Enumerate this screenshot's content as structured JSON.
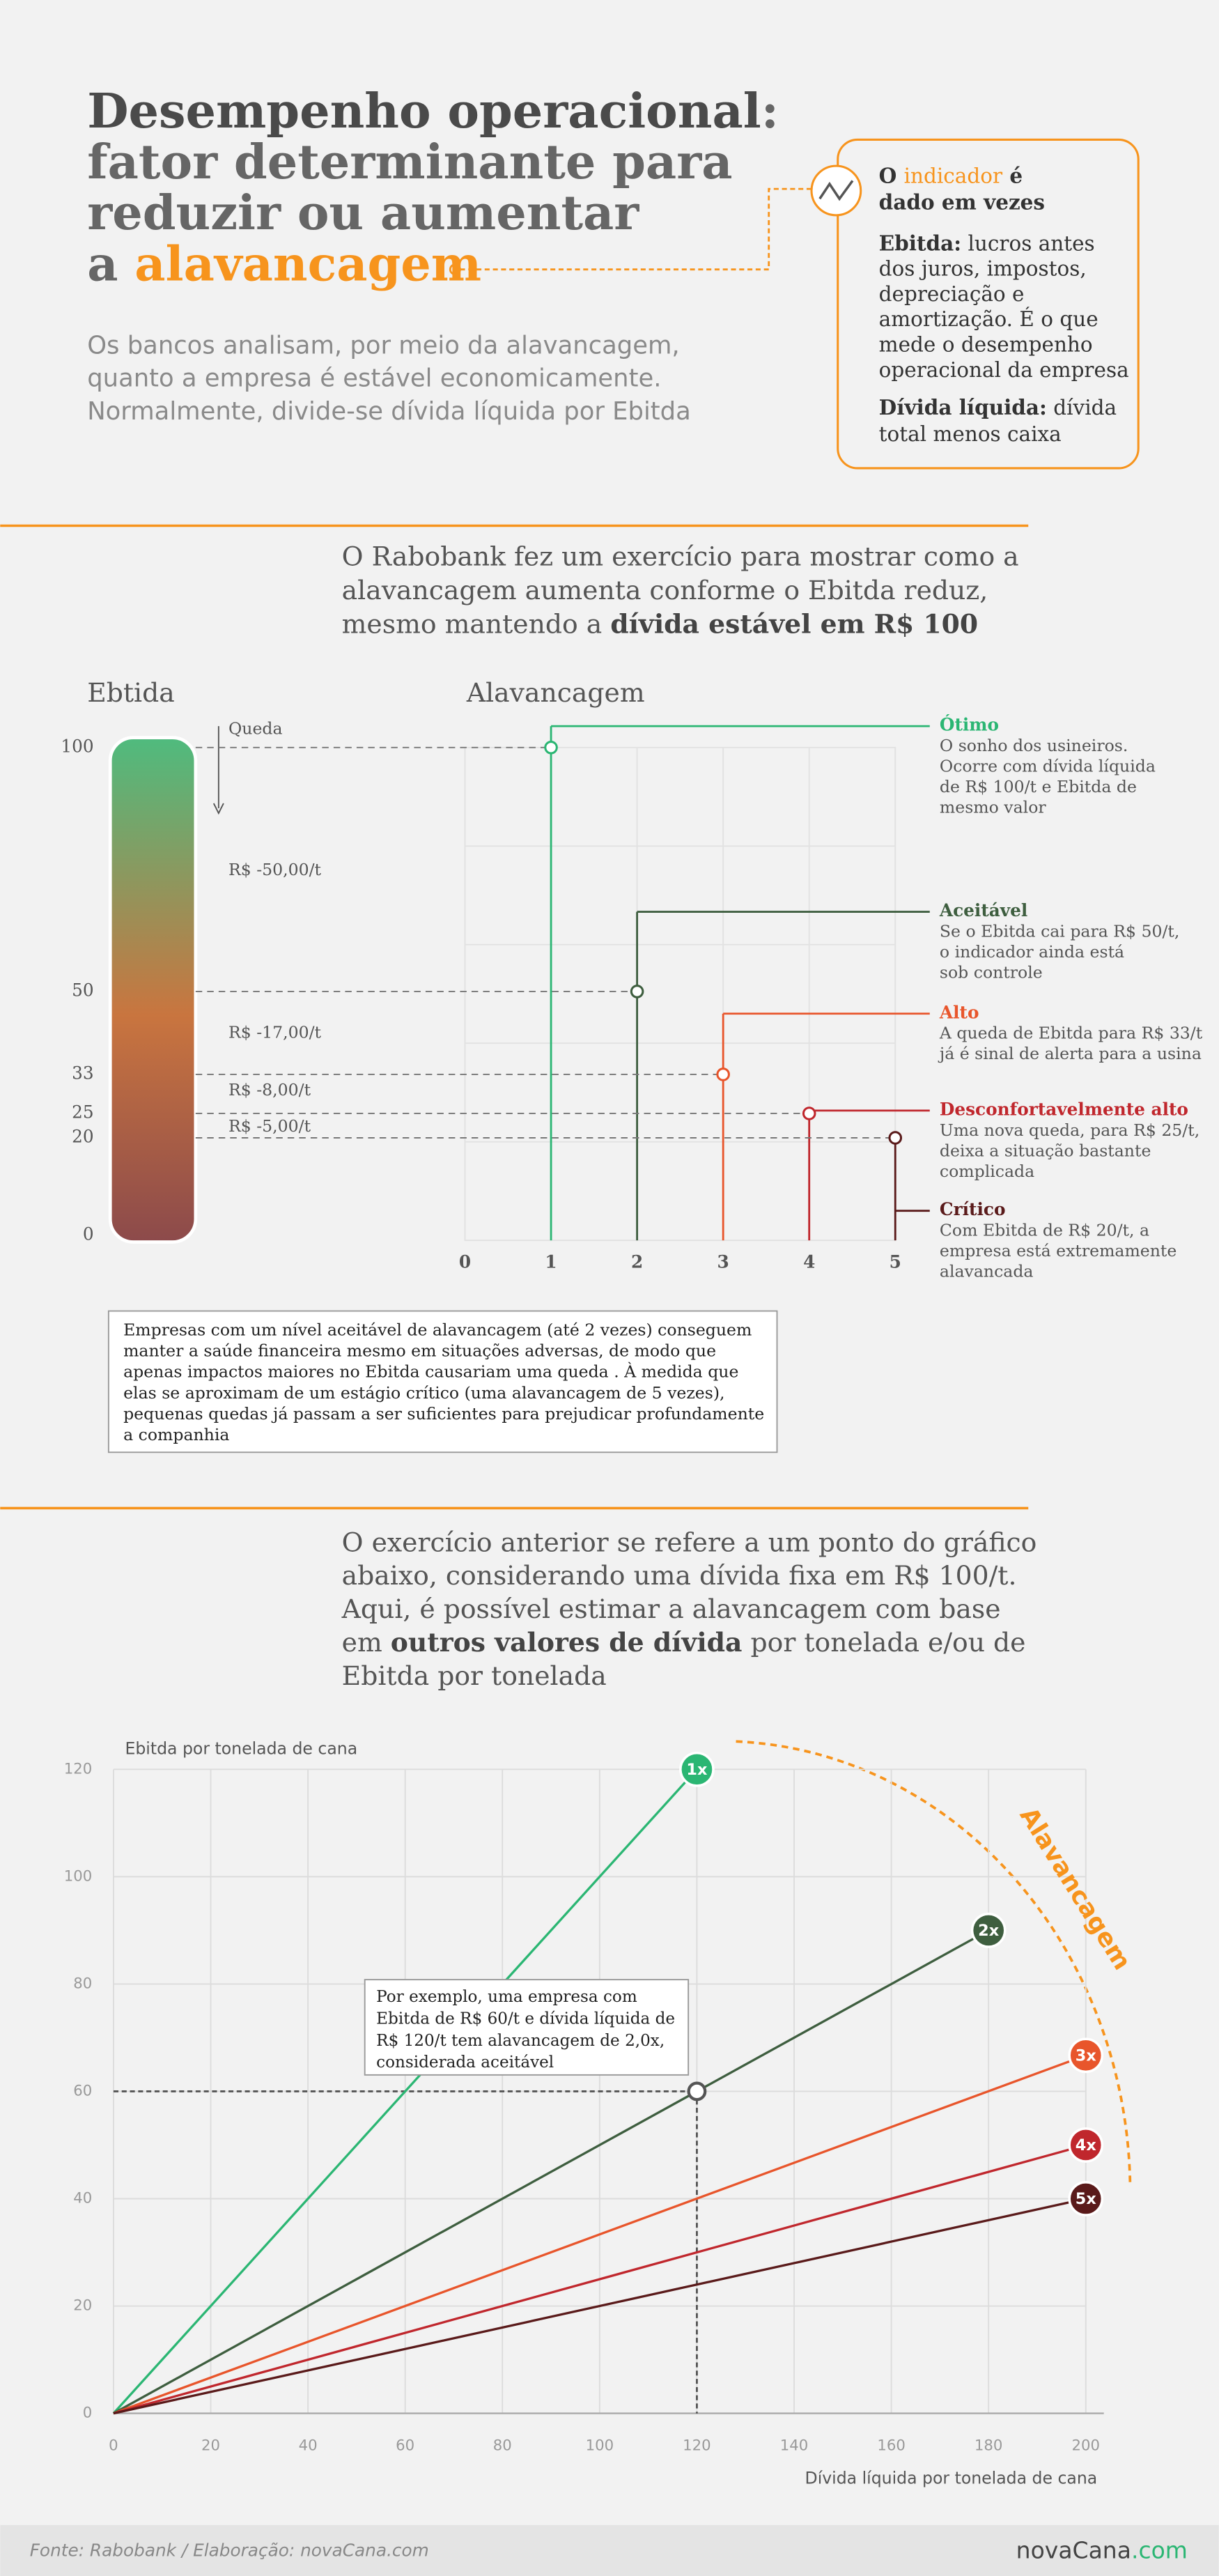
{
  "header": {
    "title": [
      [
        {
          "text": "Desempenho operacional",
          "color": "#4a4a4a"
        },
        {
          "text": ":"
        }
      ],
      [
        {
          "text": "fator determinante para"
        }
      ],
      [
        {
          "text": "reduzir ou aumentar"
        }
      ],
      [
        {
          "text": "a "
        },
        {
          "text": "alavancagem",
          "color": "#f7941d"
        }
      ]
    ],
    "subtitle": [
      "Os bancos analisam, por meio da alavancagem,",
      "quanto a empresa é estável economicamente.",
      "Normalmente, divide-se dívida líquida por Ebitda"
    ]
  },
  "info_box": {
    "indicator": [
      [
        {
          "text": "O ",
          "bold": true
        },
        {
          "text": "indicador",
          "color": "#f7941d"
        },
        {
          "text": " é",
          "bold": true
        }
      ],
      [
        {
          "text": "dado em vezes",
          "bold": true
        }
      ]
    ],
    "ebitda": [
      [
        {
          "text": "Ebitda:",
          "bold": true
        },
        {
          "text": " lucros antes"
        }
      ],
      [
        {
          "text": "dos juros, impostos,"
        }
      ],
      [
        {
          "text": "depreciação e"
        }
      ],
      [
        {
          "text": "amortização. É o que"
        }
      ],
      [
        {
          "text": "mede o desempenho"
        }
      ],
      [
        {
          "text": "operacional da empresa"
        }
      ]
    ],
    "debt": [
      [
        {
          "text": "Dívida líquida:",
          "bold": true
        },
        {
          "text": " dívida"
        }
      ],
      [
        {
          "text": "total menos caixa"
        }
      ]
    ]
  },
  "section1": {
    "intro": [
      [
        {
          "text": "O Rabobank fez um exercício para mostrar como a"
        }
      ],
      [
        {
          "text": "alavancagem aumenta conforme o Ebitda reduz,"
        }
      ],
      [
        {
          "text": "mesmo mantendo a "
        },
        {
          "text": "dívida estável em R$ 100",
          "bold": true
        }
      ]
    ]
  },
  "chart_data": [
    {
      "type": "step",
      "left_title": "Ebtida",
      "right_title": "Alavancagem",
      "drop_label": "Queda",
      "ylim": [
        0,
        100
      ],
      "yticks": [
        100,
        50,
        33,
        25,
        20,
        0
      ],
      "xlim": [
        0,
        5
      ],
      "xticks": [
        0,
        1,
        2,
        3,
        4,
        5
      ],
      "drops": [
        "R$ -50,00/t",
        "R$ -17,00/t",
        "R$ -8,00/t",
        "R$ -5,00/t"
      ],
      "series": [
        {
          "name": "Ótimo",
          "color": "#2bb673",
          "x": 1,
          "y": 100,
          "description": [
            "O sonho dos usineiros.",
            "Ocorre com dívida líquida",
            "de R$ 100/t e Ebitda de",
            "mesmo valor"
          ]
        },
        {
          "name": "Aceitável",
          "color": "#3e5e3f",
          "x": 2,
          "y": 50,
          "description": [
            "Se o Ebitda cai para R$ 50/t,",
            "o indicador ainda está",
            "sob controle"
          ]
        },
        {
          "name": "Alto",
          "color": "#e8552b",
          "x": 3,
          "y": 33,
          "description": [
            "A queda de Ebitda para R$ 33/t",
            "já é sinal de alerta para a usina"
          ]
        },
        {
          "name": "Desconfortavelmente alto",
          "color": "#c0272d",
          "x": 4,
          "y": 25,
          "description": [
            "Uma nova queda, para R$ 25/t,",
            "deixa a situação bastante",
            "complicada"
          ]
        },
        {
          "name": "Crítico",
          "color": "#5a1a1a",
          "x": 5,
          "y": 20,
          "description": [
            "Com Ebitda de R$ 20/t, a",
            "empresa está extremamente",
            "alavancada"
          ]
        }
      ]
    },
    {
      "type": "line",
      "ylabel": "Ebitda por tonelada de cana",
      "xlabel": "Dívida líquida por tonelada de cana",
      "xlim": [
        0,
        200
      ],
      "ylim": [
        0,
        120
      ],
      "xticks": [
        0,
        20,
        40,
        60,
        80,
        100,
        120,
        140,
        160,
        180,
        200
      ],
      "yticks": [
        0,
        20,
        40,
        60,
        80,
        100,
        120
      ],
      "grid": true,
      "arc_label": "Alavancagem",
      "series": [
        {
          "name": "1x",
          "color": "#2bb673",
          "x": [
            0,
            120
          ],
          "y": [
            0,
            120
          ]
        },
        {
          "name": "2x",
          "color": "#3e5e3f",
          "x": [
            0,
            180
          ],
          "y": [
            0,
            90
          ]
        },
        {
          "name": "3x",
          "color": "#e8552b",
          "x": [
            0,
            200
          ],
          "y": [
            0,
            66.7
          ]
        },
        {
          "name": "4x",
          "color": "#c0272d",
          "x": [
            0,
            200
          ],
          "y": [
            0,
            50
          ]
        },
        {
          "name": "5x",
          "color": "#5a1a1a",
          "x": [
            0,
            200
          ],
          "y": [
            0,
            40
          ]
        }
      ],
      "annotation": {
        "x": 120,
        "y": 60,
        "text": [
          "Por exemplo, uma empresa com",
          "Ebitda de R$ 60/t e dívida líquida de",
          "R$ 120/t tem alavancagem de 2,0x,",
          "considerada aceitável"
        ]
      }
    }
  ],
  "note": [
    "Empresas com um nível aceitável de alavancagem (até 2 vezes) conseguem",
    "manter a saúde financeira mesmo em situações adversas, de modo que",
    "apenas impactos maiores no Ebitda causariam uma queda . À medida que",
    "elas se aproximam de um estágio crítico (uma alavancagem de 5 vezes),",
    "pequenas quedas já passam a ser suficientes para prejudicar profundamente",
    "a companhia"
  ],
  "section2": {
    "intro": [
      [
        {
          "text": "O exercício anterior se refere a um ponto do gráfico"
        }
      ],
      [
        {
          "text": "abaixo, considerando uma dívida fixa em R$ 100/t."
        }
      ],
      [
        {
          "text": "Aqui, é possível estimar a alavancagem com base"
        }
      ],
      [
        {
          "text": "em "
        },
        {
          "text": "outros valores de dívida",
          "bold": true
        },
        {
          "text": " por tonelada e/ou de"
        }
      ],
      [
        {
          "text": "Ebitda por tonelada"
        }
      ]
    ]
  },
  "footer": {
    "source": "Fonte: Rabobank / Elaboração: novaCana.com",
    "logo": [
      [
        {
          "text": "novaCana"
        },
        {
          "text": ".com",
          "color": "#2bb673"
        }
      ]
    ]
  }
}
